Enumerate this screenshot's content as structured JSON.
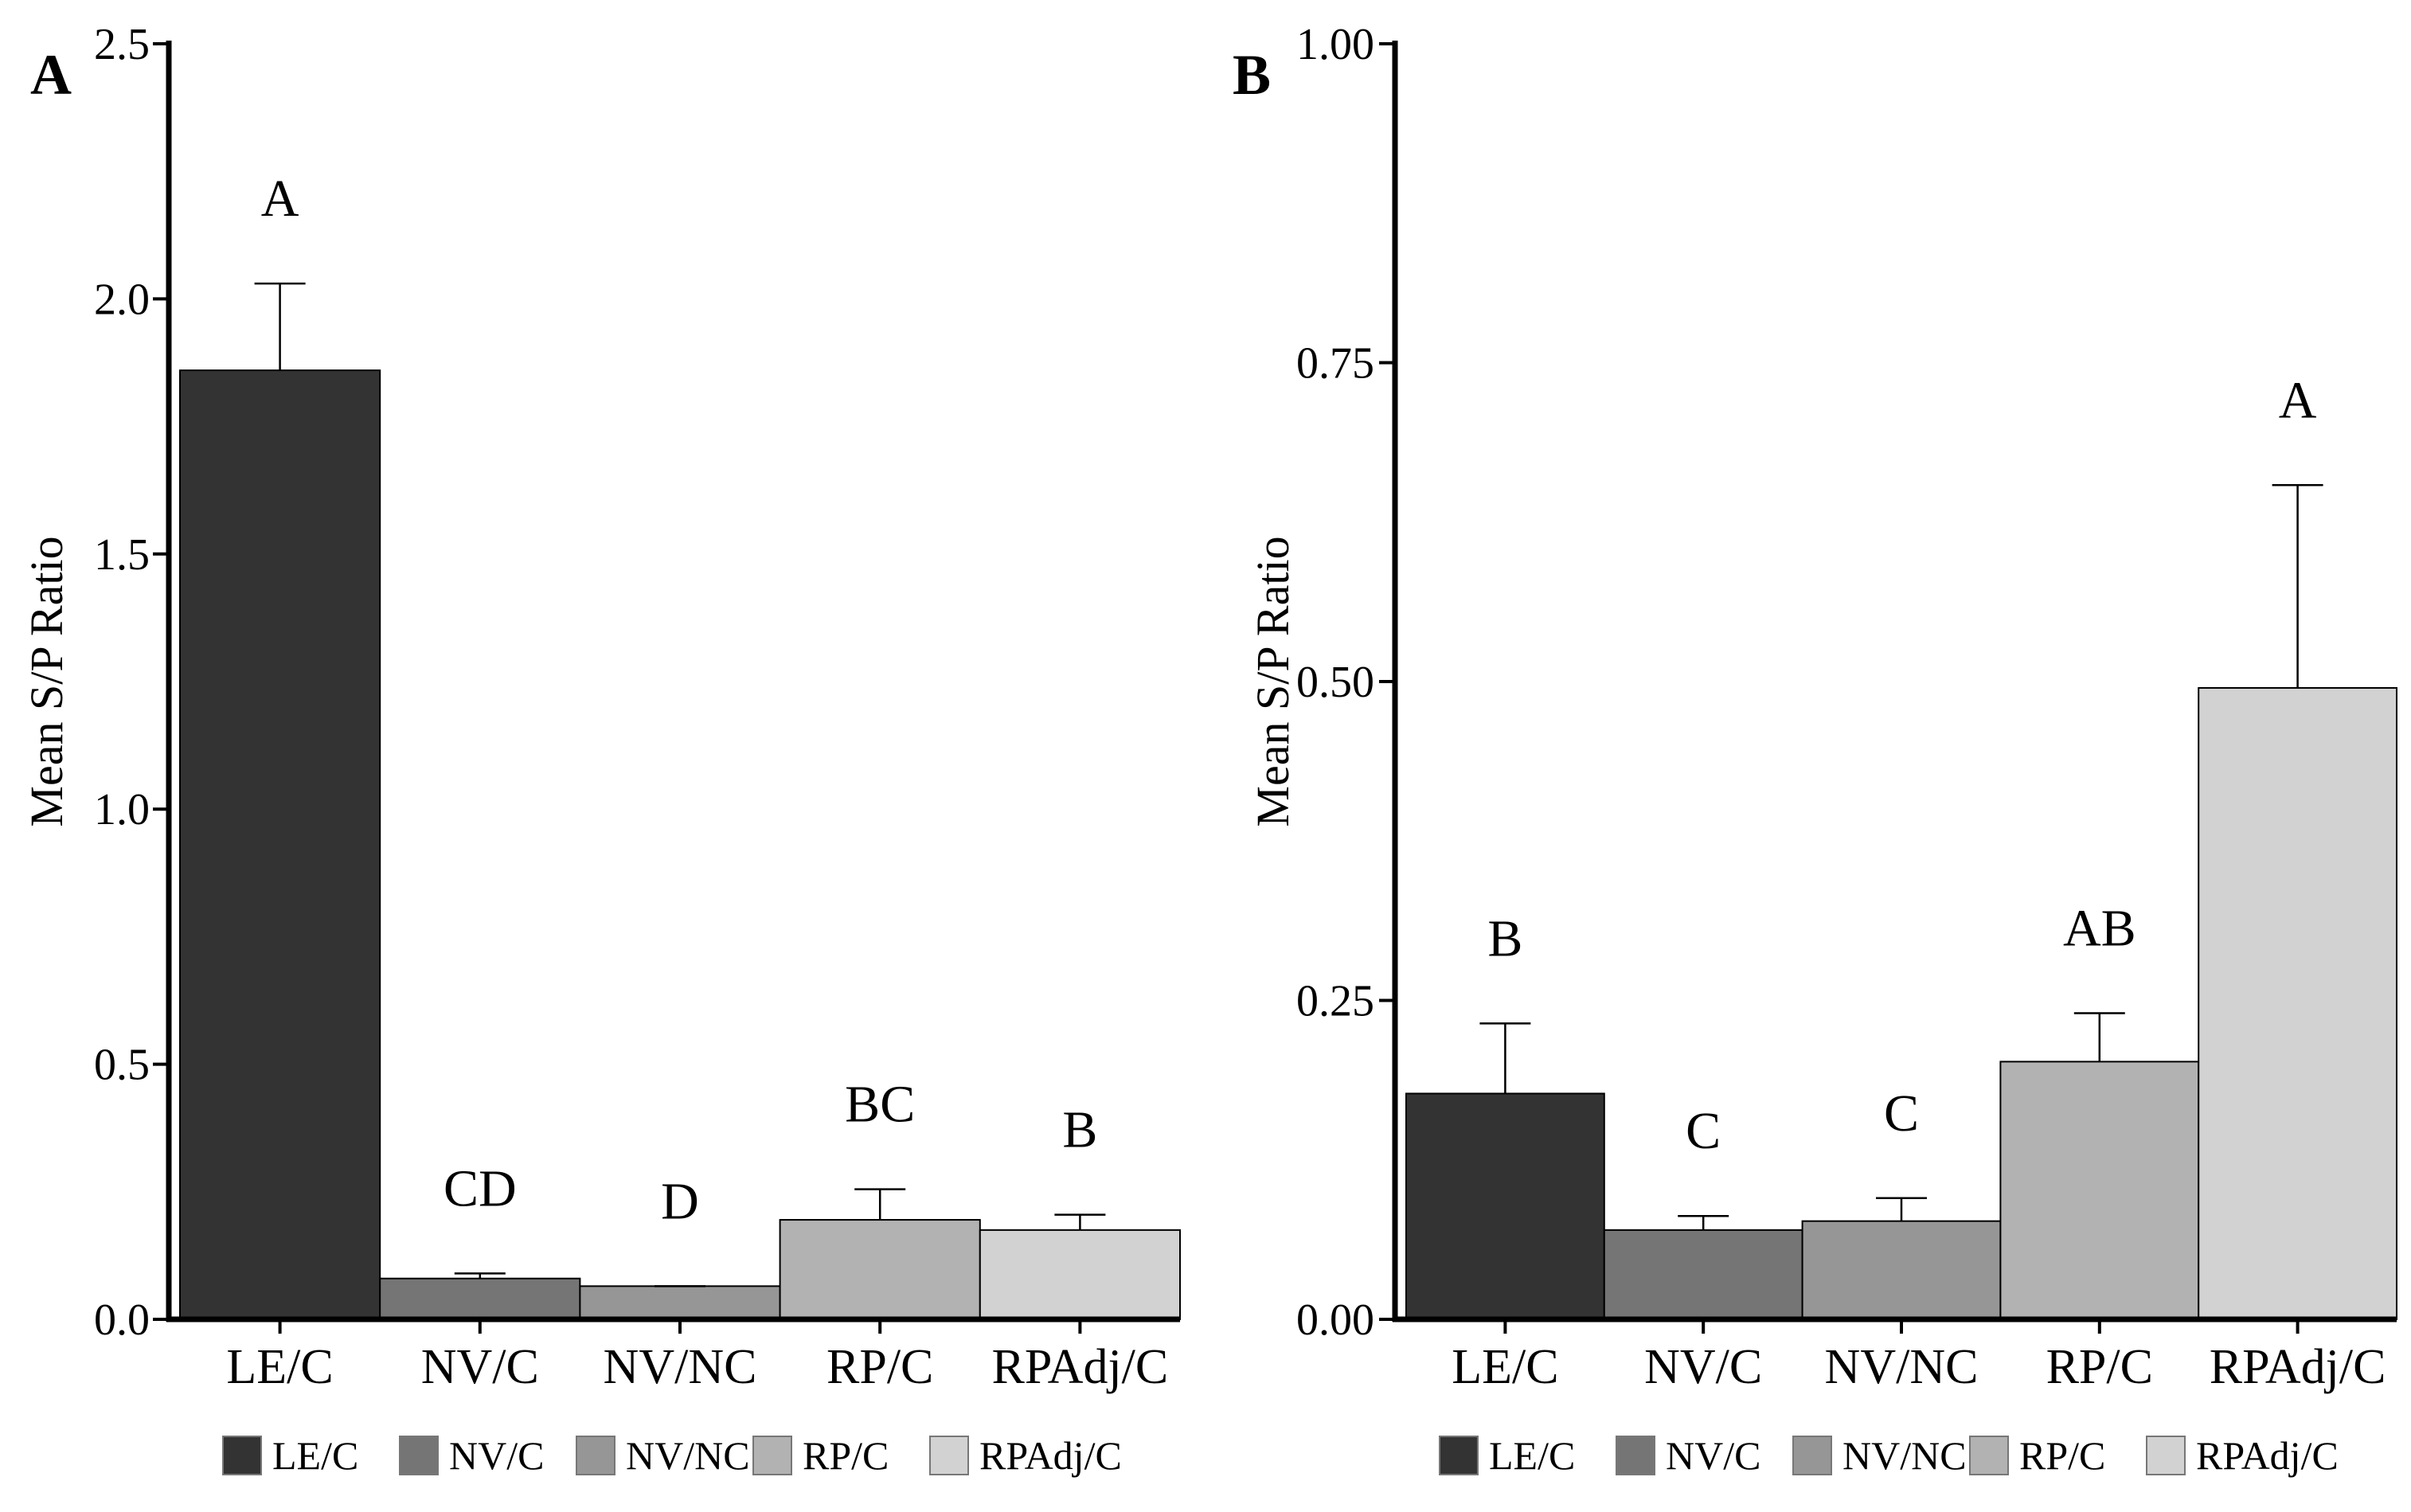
{
  "chart_data": [
    {
      "panel": "A",
      "type": "bar",
      "title": "",
      "xlabel": "",
      "ylabel": "Mean S/P Ratio",
      "ylim": [
        0,
        2.5
      ],
      "yticks": [
        0.0,
        0.5,
        1.0,
        1.5,
        2.0,
        2.5
      ],
      "ytick_labels": [
        "0.0",
        "0.5",
        "1.0",
        "1.5",
        "2.0",
        "2.5"
      ],
      "categories": [
        "LE/C",
        "NV/C",
        "NV/NC",
        "RP/C",
        "RPAdj/C"
      ],
      "values": [
        1.86,
        0.08,
        0.065,
        0.195,
        0.175
      ],
      "error_upper": [
        2.03,
        0.09,
        0.065,
        0.255,
        0.205
      ],
      "significance": [
        "A",
        "CD",
        "D",
        "BC",
        "B"
      ],
      "legend": [
        "LE/C",
        "NV/C",
        "NV/NC",
        "RP/C",
        "RPAdj/C"
      ]
    },
    {
      "panel": "B",
      "type": "bar",
      "title": "",
      "xlabel": "",
      "ylabel": "Mean S/P Ratio",
      "ylim": [
        0,
        1.0
      ],
      "yticks": [
        0.0,
        0.25,
        0.5,
        0.75,
        1.0
      ],
      "ytick_labels": [
        "0.00",
        "0.25",
        "0.50",
        "0.75",
        "1.00"
      ],
      "categories": [
        "LE/C",
        "NV/C",
        "NV/NC",
        "RP/C",
        "RPAdj/C"
      ],
      "values": [
        0.177,
        0.07,
        0.077,
        0.202,
        0.495
      ],
      "error_upper": [
        0.232,
        0.081,
        0.095,
        0.24,
        0.654
      ],
      "significance": [
        "B",
        "C",
        "C",
        "AB",
        "A"
      ],
      "legend": [
        "LE/C",
        "NV/C",
        "NV/NC",
        "RP/C",
        "RPAdj/C"
      ]
    }
  ],
  "colors": {
    "LE/C": "#333333",
    "NV/C": "#757575",
    "NV/NC": "#969696",
    "RP/C": "#b2b2b2",
    "RPAdj/C": "#d2d2d2",
    "axis": "#000000"
  }
}
